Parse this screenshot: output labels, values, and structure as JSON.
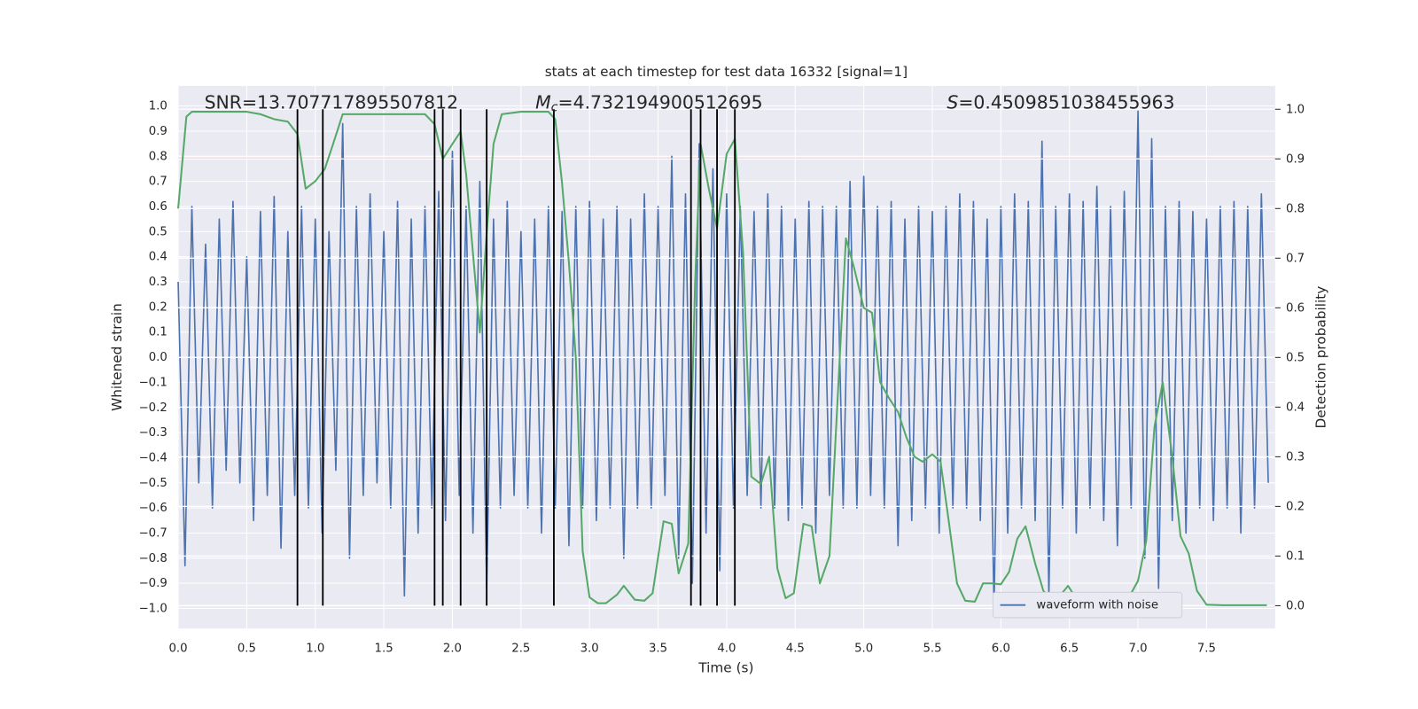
{
  "chart_data": {
    "type": "line",
    "title": "stats at each timestep for test data 16332 [signal=1]",
    "xlabel": "Time (s)",
    "ylabel": "Whitened strain",
    "y2label": "Detection probability",
    "xlim": [
      0,
      8
    ],
    "ylim": [
      -1.08,
      1.08
    ],
    "y2lim": [
      -0.046,
      1.047
    ],
    "xticks": [
      {
        "value": 0,
        "label": "0.0"
      },
      {
        "value": 0.5,
        "label": "0.5"
      },
      {
        "value": 1,
        "label": "1.0"
      },
      {
        "value": 1.5,
        "label": "1.5"
      },
      {
        "value": 2,
        "label": "2.0"
      },
      {
        "value": 2.5,
        "label": "2.5"
      },
      {
        "value": 3,
        "label": "3.0"
      },
      {
        "value": 3.5,
        "label": "3.5"
      },
      {
        "value": 4,
        "label": "4.0"
      },
      {
        "value": 4.5,
        "label": "4.5"
      },
      {
        "value": 5,
        "label": "5.0"
      },
      {
        "value": 5.5,
        "label": "5.5"
      },
      {
        "value": 6,
        "label": "6.0"
      },
      {
        "value": 6.5,
        "label": "6.5"
      },
      {
        "value": 7,
        "label": "7.0"
      },
      {
        "value": 7.5,
        "label": "7.5"
      }
    ],
    "yticks": [
      {
        "value": -1,
        "label": "−1.0"
      },
      {
        "value": -0.9,
        "label": "−0.9"
      },
      {
        "value": -0.8,
        "label": "−0.8"
      },
      {
        "value": -0.7,
        "label": "−0.7"
      },
      {
        "value": -0.6,
        "label": "−0.6"
      },
      {
        "value": -0.5,
        "label": "−0.5"
      },
      {
        "value": -0.4,
        "label": "−0.4"
      },
      {
        "value": -0.3,
        "label": "−0.3"
      },
      {
        "value": -0.2,
        "label": "−0.2"
      },
      {
        "value": -0.1,
        "label": "−0.1"
      },
      {
        "value": 0,
        "label": "0.0"
      },
      {
        "value": 0.1,
        "label": "0.1"
      },
      {
        "value": 0.2,
        "label": "0.2"
      },
      {
        "value": 0.3,
        "label": "0.3"
      },
      {
        "value": 0.4,
        "label": "0.4"
      },
      {
        "value": 0.5,
        "label": "0.5"
      },
      {
        "value": 0.6,
        "label": "0.6"
      },
      {
        "value": 0.7,
        "label": "0.7"
      },
      {
        "value": 0.8,
        "label": "0.8"
      },
      {
        "value": 0.9,
        "label": "0.9"
      },
      {
        "value": 1,
        "label": "1.0"
      }
    ],
    "y2ticks": [
      {
        "value": 0,
        "label": "0.0"
      },
      {
        "value": 0.1,
        "label": "0.1"
      },
      {
        "value": 0.2,
        "label": "0.2"
      },
      {
        "value": 0.3,
        "label": "0.3"
      },
      {
        "value": 0.4,
        "label": "0.4"
      },
      {
        "value": 0.5,
        "label": "0.5"
      },
      {
        "value": 0.6,
        "label": "0.6"
      },
      {
        "value": 0.7,
        "label": "0.7"
      },
      {
        "value": 0.8,
        "label": "0.8"
      },
      {
        "value": 0.9,
        "label": "0.9"
      },
      {
        "value": 1,
        "label": "1.0"
      }
    ],
    "grid": true,
    "background": "#eaeaf2",
    "legend_position": "lower right",
    "annotations": [
      {
        "text": "SNR=13.707717895507812"
      },
      {
        "symbol": "M",
        "subscript": "c",
        "text": "=4.732194900512695"
      },
      {
        "symbol": "S",
        "text": "=0.4509851038455963"
      }
    ],
    "hline": {
      "value": 0.9,
      "axis": "y2",
      "color": "#c44e52"
    },
    "vlines": {
      "x": [
        0.87,
        1.055,
        1.87,
        1.93,
        2.06,
        2.25,
        2.74,
        3.74,
        3.81,
        3.93,
        4.06
      ],
      "ymin": 0,
      "ymax": 1,
      "axis": "y2",
      "color": "#000000"
    },
    "series": [
      {
        "name": "waveform with noise",
        "color": "#4c72b0",
        "x": [
          0,
          0.05,
          0.1,
          0.15,
          0.2,
          0.25,
          0.3,
          0.35,
          0.4,
          0.45,
          0.5,
          0.55,
          0.6,
          0.65,
          0.7,
          0.75,
          0.8,
          0.85,
          0.9,
          0.95,
          1,
          1.05,
          1.1,
          1.15,
          1.2,
          1.25,
          1.3,
          1.35,
          1.4,
          1.45,
          1.5,
          1.55,
          1.6,
          1.65,
          1.7,
          1.75,
          1.8,
          1.85,
          1.9,
          1.95,
          2,
          2.05,
          2.1,
          2.15,
          2.2,
          2.25,
          2.3,
          2.35,
          2.4,
          2.45,
          2.5,
          2.55,
          2.6,
          2.65,
          2.7,
          2.75,
          2.8,
          2.85,
          2.9,
          2.95,
          3,
          3.05,
          3.1,
          3.15,
          3.2,
          3.25,
          3.3,
          3.35,
          3.4,
          3.45,
          3.5,
          3.55,
          3.6,
          3.65,
          3.7,
          3.75,
          3.8,
          3.85,
          3.9,
          3.95,
          4,
          4.05,
          4.1,
          4.15,
          4.2,
          4.25,
          4.3,
          4.35,
          4.4,
          4.45,
          4.5,
          4.55,
          4.6,
          4.65,
          4.7,
          4.75,
          4.8,
          4.85,
          4.9,
          4.95,
          5,
          5.05,
          5.1,
          5.15,
          5.2,
          5.25,
          5.3,
          5.35,
          5.4,
          5.45,
          5.5,
          5.55,
          5.6,
          5.65,
          5.7,
          5.75,
          5.8,
          5.85,
          5.9,
          5.95,
          6,
          6.05,
          6.1,
          6.15,
          6.2,
          6.25,
          6.3,
          6.35,
          6.4,
          6.45,
          6.5,
          6.55,
          6.6,
          6.65,
          6.7,
          6.75,
          6.8,
          6.85,
          6.9,
          6.95,
          7,
          7.05,
          7.1,
          7.15,
          7.2,
          7.25,
          7.3,
          7.35,
          7.4,
          7.45,
          7.5,
          7.55,
          7.6,
          7.65,
          7.7,
          7.75,
          7.8,
          7.85,
          7.9,
          7.95
        ],
        "values": [
          0.3,
          -0.83,
          0.6,
          -0.5,
          0.45,
          -0.6,
          0.55,
          -0.45,
          0.62,
          -0.5,
          0.4,
          -0.65,
          0.58,
          -0.55,
          0.64,
          -0.76,
          0.5,
          -0.55,
          0.6,
          -0.6,
          0.55,
          -0.7,
          0.5,
          -0.45,
          0.93,
          -0.8,
          0.6,
          -0.55,
          0.65,
          -0.5,
          0.5,
          -0.6,
          0.62,
          -0.95,
          0.55,
          -0.7,
          0.6,
          -0.6,
          0.66,
          -0.65,
          0.82,
          -0.55,
          0.6,
          -0.7,
          0.7,
          -0.92,
          0.55,
          -0.6,
          0.62,
          -0.55,
          0.5,
          -0.6,
          0.55,
          -0.7,
          0.6,
          -0.6,
          0.58,
          -0.75,
          0.6,
          -0.6,
          0.62,
          -0.65,
          0.55,
          -0.6,
          0.6,
          -0.8,
          0.55,
          -0.6,
          0.65,
          -0.6,
          0.6,
          -0.55,
          0.8,
          -0.8,
          0.65,
          -0.9,
          0.85,
          -0.7,
          0.75,
          -0.85,
          0.65,
          -0.6,
          0.6,
          -0.55,
          0.58,
          -0.6,
          0.65,
          -0.6,
          0.6,
          -0.65,
          0.55,
          -0.6,
          0.62,
          -0.7,
          0.6,
          -0.55,
          0.6,
          -0.6,
          0.7,
          -0.6,
          0.72,
          -0.55,
          0.6,
          -0.6,
          0.62,
          -0.75,
          0.55,
          -0.65,
          0.6,
          -0.6,
          0.58,
          -0.7,
          0.6,
          -0.6,
          0.65,
          -0.6,
          0.62,
          -0.65,
          0.55,
          -1.0,
          0.6,
          -0.7,
          0.65,
          -0.6,
          0.62,
          -0.65,
          0.86,
          -0.95,
          0.6,
          -0.6,
          0.65,
          -0.7,
          0.62,
          -0.6,
          0.68,
          -0.65,
          0.6,
          -0.75,
          0.66,
          -0.6,
          0.98,
          -0.8,
          0.87,
          -0.92,
          0.6,
          -0.65,
          0.62,
          -0.7,
          0.58,
          -0.6,
          0.55,
          -0.65,
          0.6,
          -0.6,
          0.62,
          -0.7,
          0.6,
          -0.6,
          0.65,
          -0.5
        ]
      },
      {
        "color": "#55a868",
        "axis": "y2",
        "x": [
          0,
          0.06,
          0.1,
          0.5,
          0.6,
          0.7,
          0.8,
          0.87,
          0.93,
          1,
          1.07,
          1.13,
          1.2,
          1.5,
          1.8,
          1.87,
          1.93,
          2,
          2.06,
          2.1,
          2.2,
          2.25,
          2.3,
          2.36,
          2.5,
          2.7,
          2.75,
          2.8,
          2.85,
          2.9,
          2.95,
          3,
          3.06,
          3.12,
          3.2,
          3.25,
          3.33,
          3.4,
          3.46,
          3.54,
          3.6,
          3.65,
          3.72,
          3.77,
          3.81,
          3.87,
          3.93,
          4,
          4.06,
          4.12,
          4.18,
          4.25,
          4.31,
          4.37,
          4.43,
          4.49,
          4.56,
          4.62,
          4.68,
          4.75,
          4.81,
          4.87,
          4.93,
          5,
          5.06,
          5.12,
          5.18,
          5.25,
          5.31,
          5.37,
          5.43,
          5.5,
          5.56,
          5.62,
          5.68,
          5.74,
          5.81,
          5.87,
          5.93,
          6,
          6.06,
          6.12,
          6.18,
          6.25,
          6.31,
          6.37,
          6.43,
          6.49,
          6.56,
          6.62,
          6.75,
          6.87,
          6.93,
          7,
          7.06,
          7.12,
          7.18,
          7.25,
          7.31,
          7.37,
          7.43,
          7.5,
          7.62,
          7.75,
          7.87,
          7.94
        ],
        "values": [
          0.8,
          0.985,
          0.995,
          0.995,
          0.99,
          0.98,
          0.975,
          0.95,
          0.84,
          0.855,
          0.88,
          0.93,
          0.99,
          0.99,
          0.99,
          0.97,
          0.9,
          0.93,
          0.955,
          0.87,
          0.55,
          0.75,
          0.93,
          0.99,
          0.995,
          0.995,
          0.98,
          0.85,
          0.69,
          0.5,
          0.11,
          0.017,
          0.005,
          0.005,
          0.022,
          0.04,
          0.012,
          0.01,
          0.025,
          0.17,
          0.165,
          0.065,
          0.125,
          0.65,
          0.93,
          0.84,
          0.76,
          0.91,
          0.94,
          0.71,
          0.26,
          0.245,
          0.3,
          0.075,
          0.015,
          0.025,
          0.165,
          0.16,
          0.045,
          0.1,
          0.42,
          0.74,
          0.68,
          0.6,
          0.59,
          0.45,
          0.42,
          0.39,
          0.34,
          0.3,
          0.29,
          0.305,
          0.29,
          0.17,
          0.045,
          0.01,
          0.008,
          0.045,
          0.045,
          0.043,
          0.068,
          0.135,
          0.16,
          0.085,
          0.03,
          0.01,
          0.02,
          0.04,
          0.01,
          0.002,
          0.001,
          0.002,
          0.015,
          0.05,
          0.13,
          0.36,
          0.45,
          0.3,
          0.14,
          0.105,
          0.03,
          0.002,
          0.001,
          0.001,
          0.001,
          0.001
        ]
      }
    ]
  }
}
